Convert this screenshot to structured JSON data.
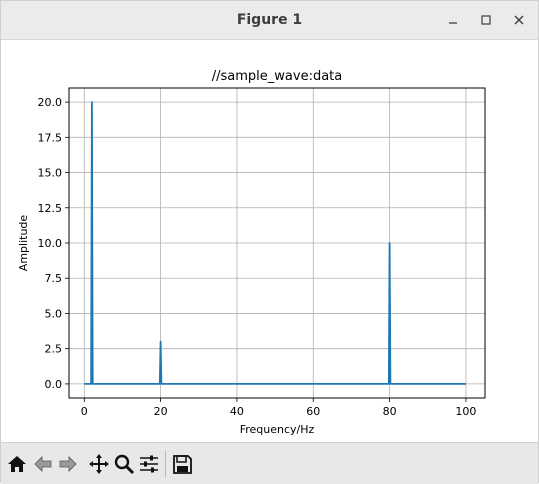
{
  "window": {
    "title": "Figure 1",
    "controls": {
      "minimize": "minimize-icon",
      "maximize": "maximize-icon",
      "close": "close-icon"
    }
  },
  "toolbar": {
    "buttons": [
      {
        "name": "home",
        "icon": "home-icon"
      },
      {
        "name": "back",
        "icon": "back-arrow-icon"
      },
      {
        "name": "forward",
        "icon": "forward-arrow-icon"
      },
      {
        "name": "pan",
        "icon": "move-icon"
      },
      {
        "name": "zoom",
        "icon": "zoom-icon"
      },
      {
        "name": "configure",
        "icon": "sliders-icon"
      },
      {
        "name": "save",
        "icon": "save-icon"
      }
    ]
  },
  "chart_data": {
    "type": "line",
    "title": "//sample_wave:data",
    "xlabel": "Frequency/Hz",
    "ylabel": "Amplitude",
    "xlim": [
      -4,
      105
    ],
    "ylim": [
      -1,
      21
    ],
    "xticks": [
      0,
      20,
      40,
      60,
      80,
      100
    ],
    "yticks": [
      0.0,
      2.5,
      5.0,
      7.5,
      10.0,
      12.5,
      15.0,
      17.5,
      20.0
    ],
    "ytick_labels": [
      "0.0",
      "2.5",
      "5.0",
      "7.5",
      "10.0",
      "12.5",
      "15.0",
      "17.5",
      "20.0"
    ],
    "xtick_labels": [
      "0",
      "20",
      "40",
      "60",
      "80",
      "100"
    ],
    "grid": true,
    "series": [
      {
        "color": "#1f77b4",
        "x": [
          0,
          1.8,
          2,
          2.2,
          19.8,
          20,
          20.2,
          79.8,
          80,
          80.2,
          100
        ],
        "y": [
          0,
          0,
          20,
          0,
          0,
          3,
          0,
          0,
          10,
          0,
          0
        ]
      }
    ]
  }
}
